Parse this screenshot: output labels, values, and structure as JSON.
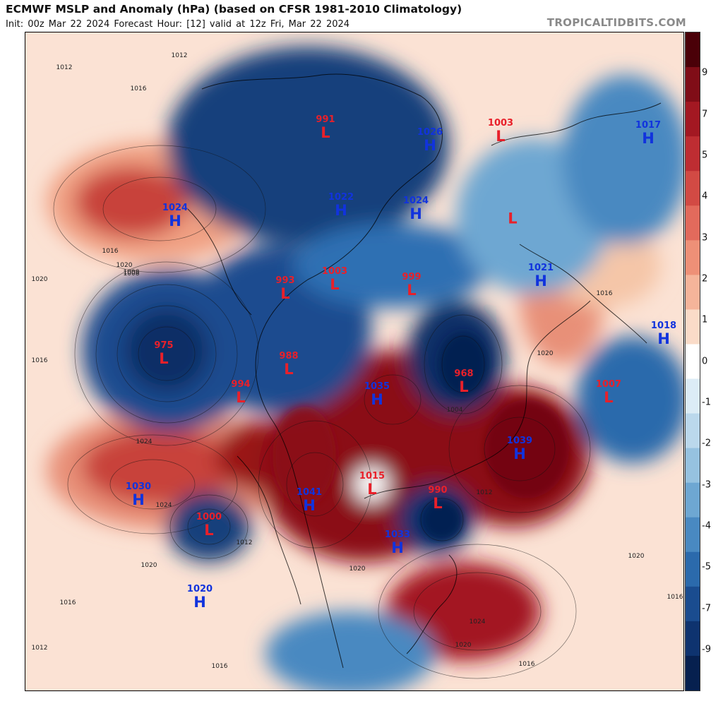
{
  "header": {
    "title": "ECMWF MSLP and Anomaly (hPa) (based on CFSR 1981-2010 Climatology)",
    "subtitle": "Init: 00z Mar 22 2024   Forecast Hour: [12]   valid at 12z Fri, Mar 22 2024",
    "site": "TROPICALTIDBITS.COM"
  },
  "colors": {
    "strong_negative": "#0b2d66",
    "negative": "#2f6fb3",
    "weak_negative": "#a9cde6",
    "neutral": "#ffffff",
    "weak_positive": "#f5c6a8",
    "positive": "#d9584d",
    "strong_positive": "#8b0a14",
    "low_label": "#e8202a",
    "high_label": "#1133dd"
  },
  "colorbar": {
    "ticks": [
      "9",
      "7",
      "5",
      "4",
      "3",
      "2",
      "1",
      "0",
      "-1",
      "-2",
      "-3",
      "-4",
      "-5",
      "-7",
      "-9"
    ],
    "tick_values": [
      9,
      7,
      5,
      4,
      3,
      2,
      1,
      0,
      -1,
      -2,
      -3,
      -4,
      -5,
      -7,
      -9
    ],
    "colors": [
      "#4a0008",
      "#800d17",
      "#a31822",
      "#be2d32",
      "#d24a44",
      "#e26a5c",
      "#ee9077",
      "#f5b49a",
      "#fadbc8",
      "#ffffff",
      "#dcecf6",
      "#bbd8ec",
      "#96c2e0",
      "#6ea7d2",
      "#4989c1",
      "#2b6aac",
      "#1a4c8f",
      "#0e336f",
      "#06204f"
    ]
  },
  "pressure_centers": [
    {
      "type": "L",
      "value": "991"
    },
    {
      "type": "H",
      "value": "1026"
    },
    {
      "type": "L",
      "value": "1003"
    },
    {
      "type": "H",
      "value": "1017"
    },
    {
      "type": "H",
      "value": "1024"
    },
    {
      "type": "H",
      "value": "1022"
    },
    {
      "type": "H",
      "value": "1024"
    },
    {
      "type": "L",
      "value": ""
    },
    {
      "type": "H",
      "value": "1021"
    },
    {
      "type": "L",
      "value": "993"
    },
    {
      "type": "L",
      "value": "1003"
    },
    {
      "type": "L",
      "value": "999"
    },
    {
      "type": "H",
      "value": "1018"
    },
    {
      "type": "L",
      "value": "975"
    },
    {
      "type": "L",
      "value": "988"
    },
    {
      "type": "L",
      "value": "994"
    },
    {
      "type": "H",
      "value": "1035"
    },
    {
      "type": "L",
      "value": "968"
    },
    {
      "type": "L",
      "value": "1007"
    },
    {
      "type": "H",
      "value": "1039"
    },
    {
      "type": "H",
      "value": "1030"
    },
    {
      "type": "H",
      "value": "1041"
    },
    {
      "type": "L",
      "value": "1015"
    },
    {
      "type": "L",
      "value": "990"
    },
    {
      "type": "L",
      "value": "1000"
    },
    {
      "type": "H",
      "value": "1033"
    },
    {
      "type": "H",
      "value": "1020"
    }
  ],
  "isobar_labels": [
    "1012",
    "1012",
    "1016",
    "1016",
    "1020",
    "1020",
    "1024",
    "1024",
    "1020",
    "1016",
    "1012",
    "1008",
    "1016",
    "1020",
    "1024",
    "1016",
    "1020",
    "1012",
    "1016",
    "1020",
    "1016",
    "1020",
    "1016",
    "1008",
    "1004",
    "1012"
  ]
}
